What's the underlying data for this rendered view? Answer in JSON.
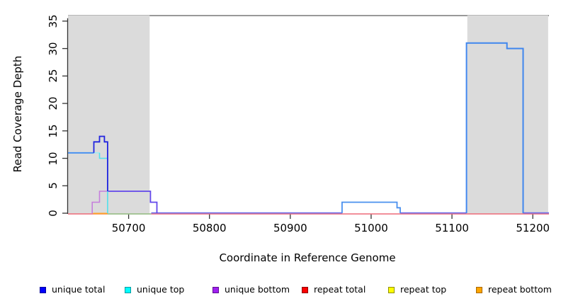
{
  "chart_data": {
    "type": "line",
    "subtype": "step-coverage",
    "title": "",
    "xlabel": "Coordinate in Reference Genome",
    "ylabel": "Read Coverage Depth",
    "xlim": [
      50625,
      51220
    ],
    "ylim": [
      0,
      36
    ],
    "x_ticks": [
      50700,
      50800,
      50900,
      51000,
      51100,
      51200
    ],
    "y_ticks": [
      0,
      5,
      10,
      15,
      20,
      25,
      30,
      35
    ],
    "grid": false,
    "legend_position": "bottom",
    "shaded_regions": [
      {
        "x0": 50625,
        "x1": 50726,
        "color": "#DBDBDB"
      },
      {
        "x0": 51119,
        "x1": 51219,
        "color": "#DBDBDB"
      }
    ],
    "series": [
      {
        "name": "unique total",
        "color": "#0000FF",
        "points": [
          [
            50625,
            11
          ],
          [
            50657,
            11
          ],
          [
            50657,
            13
          ],
          [
            50664,
            13
          ],
          [
            50664,
            14
          ],
          [
            50670,
            14
          ],
          [
            50670,
            13
          ],
          [
            50674,
            13
          ],
          [
            50674,
            4
          ],
          [
            50727,
            4
          ],
          [
            50727,
            2
          ],
          [
            50735,
            2
          ],
          [
            50735,
            0
          ],
          [
            50964,
            0
          ],
          [
            50964,
            2
          ],
          [
            51032,
            2
          ],
          [
            51032,
            1
          ],
          [
            51036,
            1
          ],
          [
            51036,
            0
          ],
          [
            51118,
            0
          ],
          [
            51118,
            31
          ],
          [
            51168,
            31
          ],
          [
            51168,
            30
          ],
          [
            51188,
            30
          ],
          [
            51188,
            0
          ],
          [
            51220,
            0
          ]
        ]
      },
      {
        "name": "unique top",
        "color": "#00FFFF",
        "points": [
          [
            50625,
            11
          ],
          [
            50664,
            11
          ],
          [
            50664,
            10
          ],
          [
            50674,
            10
          ],
          [
            50674,
            0
          ],
          [
            51220,
            0
          ]
        ]
      },
      {
        "name": "unique bottom",
        "color": "#A020F0",
        "points": [
          [
            50625,
            0
          ],
          [
            50655,
            0
          ],
          [
            50655,
            2
          ],
          [
            50664,
            2
          ],
          [
            50664,
            4
          ],
          [
            50727,
            4
          ],
          [
            50727,
            2
          ],
          [
            50735,
            2
          ],
          [
            50735,
            0
          ],
          [
            51220,
            0
          ]
        ]
      },
      {
        "name": "repeat total",
        "color": "#FF0000",
        "points": [
          [
            50625,
            0
          ],
          [
            51220,
            0
          ]
        ]
      },
      {
        "name": "repeat top",
        "color": "#FFFF00",
        "points": [
          [
            50625,
            0
          ],
          [
            51220,
            0
          ]
        ]
      },
      {
        "name": "repeat bottom",
        "color": "#FFA500",
        "points": [
          [
            50625,
            0
          ],
          [
            51220,
            0
          ]
        ]
      }
    ],
    "legend": [
      {
        "label": "unique total",
        "fill": "#0000FF",
        "border": "#00009A"
      },
      {
        "label": "unique top",
        "fill": "#00FFFF",
        "border": "#0A9AA0"
      },
      {
        "label": "unique bottom",
        "fill": "#A020F0",
        "border": "#5E1090"
      },
      {
        "label": "repeat total",
        "fill": "#FF0000",
        "border": "#8E0000"
      },
      {
        "label": "repeat top",
        "fill": "#FFFF00",
        "border": "#8F8F00"
      },
      {
        "label": "repeat bottom",
        "fill": "#FFA500",
        "border": "#A86700"
      }
    ],
    "render_segments": [
      {
        "id": "baseline-red",
        "color": "#ED6A78",
        "width": 1.5,
        "dy": 1.0,
        "points": [
          [
            50625,
            0
          ],
          [
            51220,
            0
          ]
        ]
      },
      {
        "id": "baseline-orange",
        "color": "#FFA126",
        "width": 2.0,
        "dy": 0.5,
        "points": [
          [
            50656,
            0
          ],
          [
            50674,
            0
          ]
        ]
      },
      {
        "id": "baseline-green",
        "color": "#8FCE8F",
        "width": 1.5,
        "dy": 1.0,
        "points": [
          [
            50674,
            0
          ],
          [
            50728,
            0
          ]
        ]
      },
      {
        "id": "baseline-slate-1",
        "color": "#6B6BE8",
        "width": 1.6,
        "dy": -0.4,
        "points": [
          [
            50728,
            0
          ],
          [
            50964,
            0
          ]
        ]
      },
      {
        "id": "baseline-slate-2",
        "color": "#6B6BE8",
        "width": 1.6,
        "dy": -0.4,
        "points": [
          [
            51036,
            0
          ],
          [
            51118,
            0
          ]
        ]
      },
      {
        "id": "baseline-slate-3",
        "color": "#6B6BE8",
        "width": 1.6,
        "dy": -0.4,
        "points": [
          [
            51188,
            0
          ],
          [
            51220,
            0
          ]
        ]
      },
      {
        "id": "unique-bottom-rise",
        "color": "#C57FDC",
        "width": 1.6,
        "dy": 0,
        "points": [
          [
            50655,
            0
          ],
          [
            50655,
            2
          ],
          [
            50664,
            2
          ],
          [
            50664,
            4
          ],
          [
            50674,
            4
          ]
        ]
      },
      {
        "id": "unique-level4-steps",
        "color": "#6247EA",
        "width": 1.8,
        "dy": 0,
        "points": [
          [
            50674,
            4
          ],
          [
            50727,
            4
          ],
          [
            50727,
            2
          ],
          [
            50735,
            2
          ],
          [
            50735,
            0
          ]
        ]
      },
      {
        "id": "cyan-level11",
        "color": "#A0ECF3",
        "width": 1.6,
        "dy": 0,
        "points": [
          [
            50657,
            11
          ],
          [
            50664,
            11
          ]
        ]
      },
      {
        "id": "cyan-level10-drop",
        "color": "#52E1EC",
        "width": 1.6,
        "dy": 0,
        "points": [
          [
            50664,
            11
          ],
          [
            50664,
            10
          ],
          [
            50674,
            10
          ],
          [
            50674,
            0
          ]
        ]
      },
      {
        "id": "blue-level11",
        "color": "#3F8DF2",
        "width": 1.8,
        "dy": 0,
        "points": [
          [
            50625,
            11
          ],
          [
            50657,
            11
          ]
        ]
      },
      {
        "id": "blue-peak",
        "color": "#2224DF",
        "width": 1.8,
        "dy": 0,
        "points": [
          [
            50657,
            11
          ],
          [
            50657,
            13
          ],
          [
            50664,
            13
          ],
          [
            50664,
            14
          ],
          [
            50670,
            14
          ],
          [
            50670,
            13
          ],
          [
            50674,
            13
          ],
          [
            50674,
            4
          ]
        ]
      },
      {
        "id": "blue-bump",
        "color": "#4A90EE",
        "width": 1.8,
        "dy": 0,
        "points": [
          [
            50964,
            0
          ],
          [
            50964,
            2
          ],
          [
            51032,
            2
          ],
          [
            51032,
            1
          ],
          [
            51036,
            1
          ],
          [
            51036,
            0
          ]
        ]
      },
      {
        "id": "blue-block",
        "color": "#3F86EE",
        "width": 2.0,
        "dy": 0,
        "points": [
          [
            51118,
            0
          ],
          [
            51118,
            31
          ],
          [
            51168,
            31
          ],
          [
            51168,
            30
          ],
          [
            51188,
            30
          ],
          [
            51188,
            0
          ]
        ]
      }
    ]
  },
  "colors": {
    "shade": "#DBDBDB",
    "box_top_line": "#999999",
    "axis": "#333333",
    "background": "#FFFFFF"
  }
}
